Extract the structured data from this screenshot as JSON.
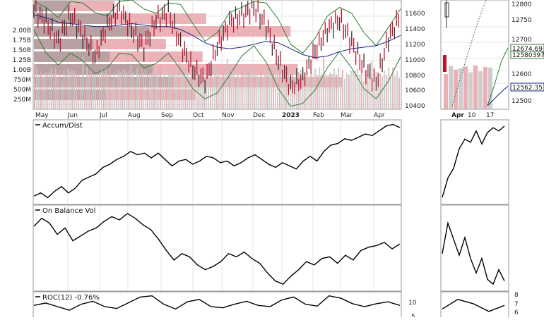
{
  "chart_data": [
    {
      "type": "bar",
      "panel": "price",
      "price_axis": {
        "ticks": [
          10400,
          10600,
          10800,
          11000,
          11200,
          11400,
          11600
        ],
        "range": [
          10340,
          11820
        ]
      },
      "volume_axis": {
        "labels": [
          "2.00B",
          "1.75B",
          "1.50B",
          "1.25B",
          "1.00B",
          "750M",
          "500M",
          "250M"
        ]
      },
      "x_axis": {
        "labels": [
          "May",
          "Jun",
          "Jul",
          "Aug",
          "Sep",
          "Oct",
          "Nov",
          "Dec",
          "2023",
          "Feb",
          "Mar",
          "Apr"
        ]
      },
      "close": [
        11690,
        11520,
        11260,
        11620,
        11340,
        11050,
        11480,
        11700,
        11420,
        11180,
        11550,
        11650,
        11220,
        10880,
        10720,
        11190,
        11520,
        11610,
        11720,
        11480,
        11000,
        10640,
        10760,
        11120,
        11420,
        11560,
        11240,
        10900,
        10700,
        11300,
        11600
      ],
      "upper_band": [
        11800,
        11720,
        11580,
        11800,
        11780,
        11650,
        11600,
        11800,
        11820,
        11700,
        11640,
        11780,
        11760,
        11500,
        11260,
        11380,
        11650,
        11720,
        11800,
        11780,
        11560,
        11220,
        11100,
        11300,
        11600,
        11720,
        11640,
        11380,
        11200,
        11450,
        11700
      ],
      "lower_band": [
        11420,
        11100,
        10940,
        11100,
        11000,
        10820,
        10900,
        11100,
        11080,
        10900,
        10960,
        11100,
        10880,
        10620,
        10480,
        10560,
        10800,
        11060,
        11200,
        10980,
        10620,
        10380,
        10420,
        10600,
        10900,
        11120,
        10900,
        10620,
        10480,
        10720,
        11050
      ],
      "moving_average": [
        11620,
        11580,
        11520,
        11500,
        11480,
        11460,
        11460,
        11480,
        11500,
        11480,
        11460,
        11460,
        11420,
        11340,
        11240,
        11180,
        11160,
        11180,
        11220,
        11260,
        11240,
        11160,
        11080,
        11040,
        11060,
        11120,
        11160,
        11180,
        11200,
        11260,
        11340
      ],
      "volume_by_price_bars": [
        0.22,
        0.47,
        0.7,
        0.36,
        0.46,
        0.72,
        0.84,
        0.44
      ]
    },
    {
      "type": "bar",
      "panel": "price-zoom",
      "price_axis": {
        "ticks": [
          12500,
          12600,
          12700,
          12750,
          12800
        ],
        "range": [
          12440,
          12835
        ]
      },
      "x_axis": {
        "labels": [
          "Apr",
          "10",
          "17"
        ]
      },
      "price_labels": [
        "12674.69",
        "12580397",
        "12562.35"
      ]
    },
    {
      "type": "line",
      "panel": "accum-dist",
      "title": "Accum/Dist",
      "values": [
        0.06,
        0.1,
        0.04,
        0.12,
        0.18,
        0.1,
        0.16,
        0.26,
        0.3,
        0.34,
        0.42,
        0.46,
        0.52,
        0.56,
        0.62,
        0.58,
        0.6,
        0.54,
        0.6,
        0.52,
        0.44,
        0.5,
        0.52,
        0.46,
        0.5,
        0.56,
        0.54,
        0.48,
        0.5,
        0.44,
        0.48,
        0.54,
        0.58,
        0.52,
        0.46,
        0.42,
        0.48,
        0.44,
        0.4,
        0.5,
        0.56,
        0.5,
        0.62,
        0.7,
        0.72,
        0.78,
        0.76,
        0.8,
        0.84,
        0.82,
        0.88,
        0.94,
        0.96,
        0.92
      ]
    },
    {
      "type": "line",
      "panel": "accum-dist-zoom",
      "values": [
        0.06,
        0.3,
        0.42,
        0.66,
        0.78,
        0.74,
        0.88,
        0.72,
        0.86,
        0.92,
        0.88,
        0.94
      ]
    },
    {
      "type": "line",
      "panel": "on-balance-vol",
      "title": "On Balance Vol",
      "values": [
        0.78,
        0.88,
        0.82,
        0.68,
        0.76,
        0.6,
        0.66,
        0.72,
        0.76,
        0.84,
        0.9,
        0.86,
        0.94,
        0.88,
        0.8,
        0.74,
        0.62,
        0.48,
        0.36,
        0.44,
        0.4,
        0.3,
        0.24,
        0.28,
        0.34,
        0.44,
        0.4,
        0.46,
        0.38,
        0.32,
        0.2,
        0.1,
        0.06,
        0.16,
        0.24,
        0.34,
        0.3,
        0.38,
        0.4,
        0.32,
        0.42,
        0.36,
        0.48,
        0.52,
        0.54,
        0.58,
        0.5,
        0.56
      ]
    },
    {
      "type": "line",
      "panel": "on-balance-vol-zoom",
      "values": [
        0.44,
        0.82,
        0.62,
        0.42,
        0.64,
        0.38,
        0.2,
        0.38,
        0.12,
        0.06,
        0.24,
        0.1
      ]
    },
    {
      "type": "line",
      "panel": "roc",
      "title": "ROC(12) -0.76%",
      "y_ticks": [
        "10",
        "5"
      ],
      "values": [
        0.55,
        0.65,
        0.5,
        0.35,
        0.6,
        0.72,
        0.5,
        0.42,
        0.66,
        0.9,
        0.95,
        0.6,
        0.4,
        0.7,
        0.8,
        0.5,
        0.45,
        0.6,
        0.72,
        0.55,
        0.5,
        0.78,
        0.9,
        0.6,
        0.52,
        0.95,
        0.85,
        0.62,
        0.5,
        0.62,
        0.7,
        0.55
      ]
    },
    {
      "type": "line",
      "panel": "roc-zoom",
      "y_ticks": [
        "8",
        "7",
        "6"
      ],
      "values": [
        0.4,
        0.8,
        0.62,
        0.3,
        0.55
      ]
    }
  ],
  "colors": {
    "price_down": "#c0142c",
    "price_up": "#333333",
    "bollinger_band": "#2e7d32",
    "moving_average": "#1a237e",
    "volume_by_price": "#e8a6ac",
    "volume": "#c8c8c8",
    "grid": "#e6e6e6",
    "highlight_box_border": "#2e7d32"
  }
}
